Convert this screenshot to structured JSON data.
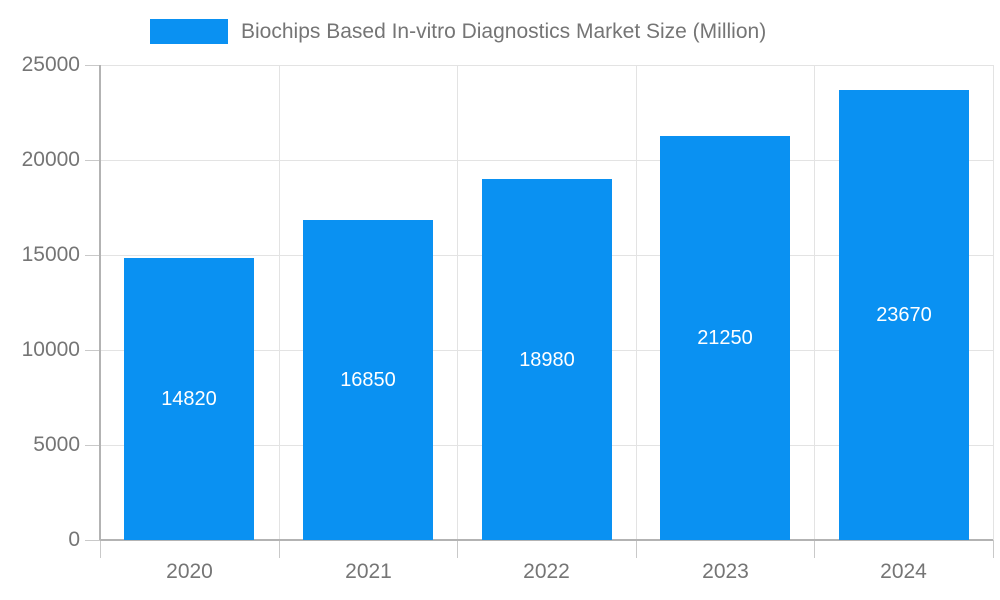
{
  "chart_data": {
    "type": "bar",
    "title": "Biochips Based In-vitro Diagnostics Market Size (Million)",
    "legend": {
      "label": "Biochips Based In-vitro Diagnostics Market Size (Million)",
      "position": "top"
    },
    "categories": [
      "2020",
      "2021",
      "2022",
      "2023",
      "2024"
    ],
    "values": [
      14820,
      16850,
      18980,
      21250,
      23670
    ],
    "value_labels_position": "inside-center",
    "xlabel": "",
    "ylabel": "",
    "ylim": [
      0,
      25000
    ],
    "yticks": [
      0,
      5000,
      10000,
      15000,
      20000,
      25000
    ],
    "grid": true,
    "colors": {
      "bar": "#0a91f2",
      "axis": "#b3b3b3",
      "grid": "#e3e3e3",
      "tick": "#c9c9c9",
      "tick_text": "#757575",
      "legend_text": "#757575",
      "value_label_text": "#ffffff",
      "background": "#ffffff"
    }
  }
}
